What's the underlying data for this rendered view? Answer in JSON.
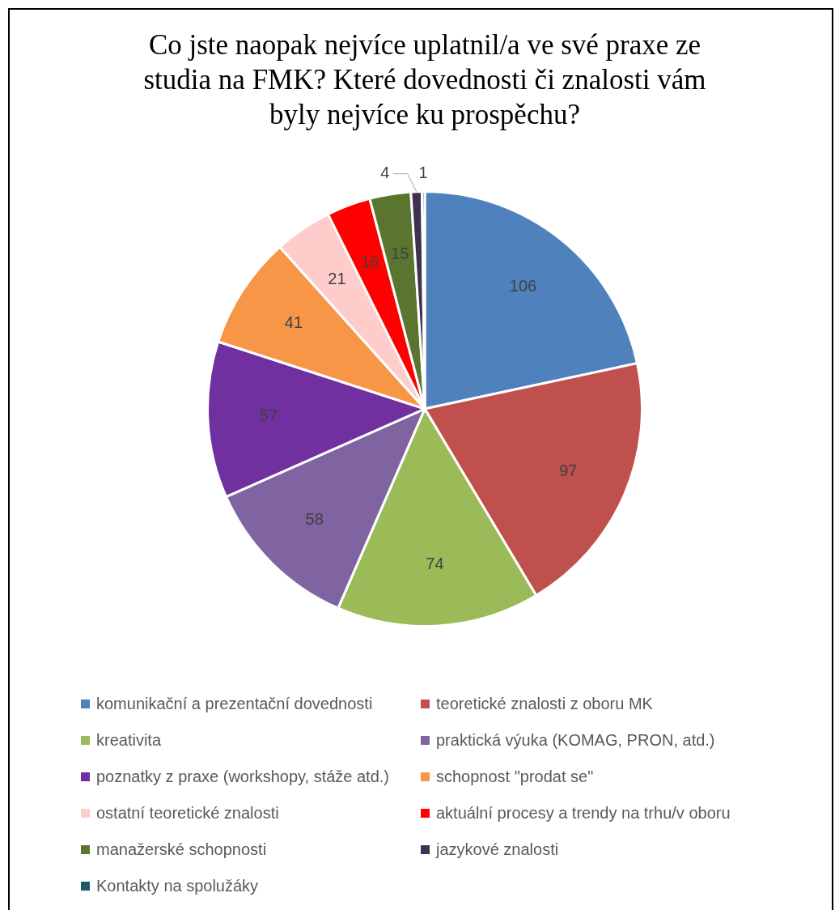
{
  "chart_data": {
    "type": "pie",
    "title": "Co jste naopak nejvíce uplatnil/a ve své praxe ze studia na FMK? Které dovednosti či znalosti vám byly nejvíce ku prospěchu?",
    "categories": [
      "komunikační a prezentační dovednosti",
      "teoretické znalosti z oboru MK",
      "kreativita",
      "praktická výuka (KOMAG, PRON, atd.)",
      "poznatky z praxe (workshopy, stáže atd.)",
      "schopnost \"prodat se\"",
      "ostatní teoretické znalosti",
      "aktuální procesy a trendy na trhu/v oboru",
      "manažerské schopnosti",
      "jazykové znalosti",
      "Kontakty na spolužáky"
    ],
    "values": [
      106,
      97,
      74,
      58,
      57,
      41,
      21,
      16,
      15,
      4,
      1
    ],
    "colors": [
      "#4f81bd",
      "#c0504d",
      "#9bbb59",
      "#8064a2",
      "#7030a0",
      "#f79646",
      "#ffcccc",
      "#ff0000",
      "#5a7530",
      "#3f3151",
      "#215968"
    ],
    "data_labels": true,
    "legend": "bottom"
  }
}
